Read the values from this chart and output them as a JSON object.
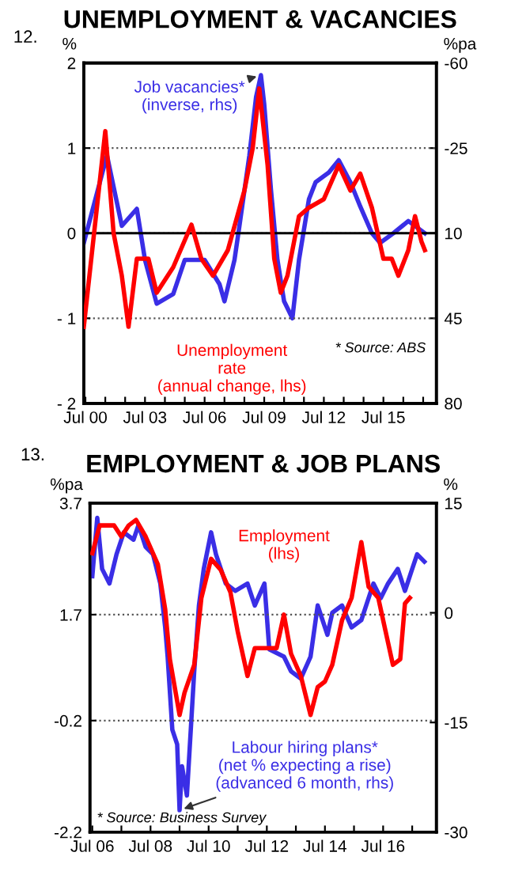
{
  "chart_data": [
    {
      "type": "line",
      "title": "UNEMPLOYMENT & VACANCIES",
      "ylabel": "%",
      "y2label": "%pa",
      "annotations": [
        "12.",
        "* Source: ABS"
      ],
      "xlim": [
        "2000-06",
        "2018-03"
      ],
      "xticks": [
        {
          "value": "2000-07",
          "label": "Jul 00"
        },
        {
          "value": "2001-07",
          "label": null
        },
        {
          "value": "2002-07",
          "label": null
        },
        {
          "value": "2003-07",
          "label": "Jul 03"
        },
        {
          "value": "2004-07",
          "label": null
        },
        {
          "value": "2005-07",
          "label": null
        },
        {
          "value": "2006-07",
          "label": "Jul 06"
        },
        {
          "value": "2007-07",
          "label": null
        },
        {
          "value": "2008-07",
          "label": null
        },
        {
          "value": "2009-07",
          "label": "Jul 09"
        },
        {
          "value": "2010-07",
          "label": null
        },
        {
          "value": "2011-07",
          "label": null
        },
        {
          "value": "2012-07",
          "label": "Jul 12"
        },
        {
          "value": "2013-07",
          "label": null
        },
        {
          "value": "2014-07",
          "label": null
        },
        {
          "value": "2015-07",
          "label": "Jul 15"
        },
        {
          "value": "2016-07",
          "label": null
        },
        {
          "value": "2017-07",
          "label": null
        }
      ],
      "ylim": [
        -2,
        2
      ],
      "yticks": [
        {
          "value": -2,
          "label": "- 2"
        },
        {
          "value": -1,
          "label": "- 1"
        },
        0,
        1,
        2
      ],
      "y2lim": [
        80,
        -60
      ],
      "y2ticks": [
        80,
        45,
        10,
        -25,
        -60
      ],
      "grid": "y",
      "ref_lines": [
        {
          "axis": "y",
          "value": 0,
          "color": "#000000"
        }
      ],
      "series": [
        {
          "name": "Unemployment\nrate\n(annual change, lhs)",
          "color": "#ff0000",
          "x": [
            "2000-06",
            "2001-07",
            "2001-12",
            "2002-05",
            "2002-09",
            "2003-02",
            "2003-09",
            "2004-02",
            "2004-12",
            "2005-11",
            "2006-05",
            "2006-12",
            "2007-09",
            "2008-07",
            "2008-12",
            "2009-04",
            "2009-09",
            "2010-01",
            "2010-05",
            "2010-09",
            "2011-04",
            "2011-10",
            "2012-07",
            "2013-04",
            "2013-11",
            "2014-05",
            "2014-12",
            "2015-07",
            "2015-12",
            "2016-04",
            "2016-10",
            "2017-02",
            "2017-06",
            "2017-08"
          ],
          "values": [
            -1.1,
            1.2,
            0.0,
            -0.5,
            -1.1,
            -0.3,
            -0.3,
            -0.7,
            -0.4,
            0.1,
            -0.3,
            -0.5,
            -0.2,
            0.5,
            1.0,
            1.7,
            0.8,
            -0.3,
            -0.7,
            -0.5,
            0.2,
            0.3,
            0.4,
            0.8,
            0.5,
            0.7,
            0.3,
            -0.3,
            -0.3,
            -0.5,
            -0.2,
            0.2,
            -0.1,
            -0.2
          ]
        },
        {
          "name": "Job vacancies*\n(inverse, rhs)",
          "color": "#3a2ee6",
          "axis": "y2",
          "x": [
            "2000-06",
            "2001-08",
            "2002-05",
            "2003-02",
            "2003-07",
            "2004-02",
            "2004-12",
            "2005-07",
            "2006-07",
            "2007-04",
            "2007-07",
            "2008-01",
            "2008-04",
            "2008-10",
            "2009-02",
            "2009-05",
            "2009-07",
            "2009-11",
            "2010-03",
            "2010-07",
            "2010-12",
            "2011-04",
            "2011-10",
            "2012-02",
            "2012-10",
            "2013-04",
            "2013-11",
            "2014-05",
            "2014-12",
            "2015-05",
            "2016-01",
            "2016-10",
            "2017-08"
          ],
          "values": [
            14,
            -22,
            7,
            0,
            21,
            39,
            35,
            21,
            21,
            31,
            38,
            21,
            7,
            -22,
            -46,
            -55,
            -43,
            -8,
            21,
            38,
            45,
            21,
            -4,
            -11,
            -15,
            -20,
            -11,
            -1,
            10,
            14,
            10,
            5,
            10
          ]
        }
      ]
    },
    {
      "type": "line",
      "title": "EMPLOYMENT & JOB PLANS",
      "ylabel": "%pa",
      "y2label": "%",
      "annotations": [
        "13.",
        "* Source: Business Survey"
      ],
      "xlim": [
        "2006-06",
        "2018-05"
      ],
      "xticks": [
        {
          "value": "2006-07",
          "label": "Jul 06"
        },
        {
          "value": "2007-07",
          "label": null
        },
        {
          "value": "2008-07",
          "label": "Jul 08"
        },
        {
          "value": "2009-07",
          "label": null
        },
        {
          "value": "2010-07",
          "label": "Jul 10"
        },
        {
          "value": "2011-07",
          "label": null
        },
        {
          "value": "2012-07",
          "label": "Jul 12"
        },
        {
          "value": "2013-07",
          "label": null
        },
        {
          "value": "2014-07",
          "label": "Jul 14"
        },
        {
          "value": "2015-07",
          "label": null
        },
        {
          "value": "2016-07",
          "label": "Jul 16"
        },
        {
          "value": "2017-07",
          "label": null
        }
      ],
      "ylim": [
        -2.2,
        3.7
      ],
      "yticks": [
        -2.2,
        -0.2,
        1.7,
        3.7
      ],
      "y2lim": [
        -30,
        15
      ],
      "y2ticks": [
        -30,
        -15,
        0,
        15
      ],
      "grid": "y",
      "series": [
        {
          "name": "Employment\n(lhs)",
          "color": "#ff0000",
          "x": [
            "2006-07",
            "2006-10",
            "2007-04",
            "2007-07",
            "2007-10",
            "2008-01",
            "2008-05",
            "2008-10",
            "2009-01",
            "2009-03",
            "2009-07",
            "2009-09",
            "2010-01",
            "2010-04",
            "2010-08",
            "2010-12",
            "2011-04",
            "2011-07",
            "2011-11",
            "2012-02",
            "2012-07",
            "2012-11",
            "2013-02",
            "2013-05",
            "2013-09",
            "2014-01",
            "2014-04",
            "2014-07",
            "2014-10",
            "2015-02",
            "2015-06",
            "2015-10",
            "2016-01",
            "2016-05",
            "2016-08",
            "2016-11",
            "2017-02",
            "2017-04",
            "2017-06"
          ],
          "values": [
            2.8,
            3.3,
            3.3,
            3.1,
            3.3,
            3.4,
            3.1,
            2.6,
            1.8,
            0.9,
            -0.1,
            0.3,
            0.8,
            2.0,
            2.7,
            2.5,
            2.1,
            1.4,
            0.6,
            1.1,
            1.1,
            1.1,
            1.7,
            1.0,
            0.6,
            -0.1,
            0.4,
            0.5,
            0.8,
            1.6,
            2.0,
            3.0,
            2.2,
            2.0,
            1.4,
            0.8,
            0.9,
            1.9,
            2.0
          ]
        },
        {
          "name": "Labour hiring plans*\n(net % expecting a rise)\n(advanced 6 month, rhs)",
          "color": "#3a2ee6",
          "axis": "y2",
          "x": [
            "2006-07",
            "2006-09",
            "2006-11",
            "2007-02",
            "2007-05",
            "2007-08",
            "2007-12",
            "2008-02",
            "2008-05",
            "2008-08",
            "2008-11",
            "2009-01",
            "2009-02",
            "2009-04",
            "2009-06",
            "2009-07",
            "2009-08",
            "2009-10",
            "2010-01",
            "2010-03",
            "2010-05",
            "2010-08",
            "2010-10",
            "2011-02",
            "2011-06",
            "2011-11",
            "2012-02",
            "2012-06",
            "2012-08",
            "2013-02",
            "2013-05",
            "2013-09",
            "2014-01",
            "2014-04",
            "2014-08",
            "2014-10",
            "2015-02",
            "2015-06",
            "2015-10",
            "2016-03",
            "2016-06",
            "2016-09",
            "2017-01",
            "2017-04",
            "2017-07",
            "2017-09",
            "2017-12"
          ],
          "values": [
            5,
            13,
            6,
            4,
            8,
            11,
            10,
            12,
            9,
            8,
            4,
            -2,
            -6,
            -16,
            -18,
            -27,
            -21,
            -25,
            -8,
            1,
            6,
            11,
            8,
            4,
            3,
            4,
            1,
            4,
            -5,
            -6,
            -8,
            -9,
            -6,
            1,
            -3,
            0,
            1,
            -2,
            -1,
            4,
            2,
            4,
            6,
            3,
            6,
            8,
            7
          ]
        }
      ]
    }
  ]
}
